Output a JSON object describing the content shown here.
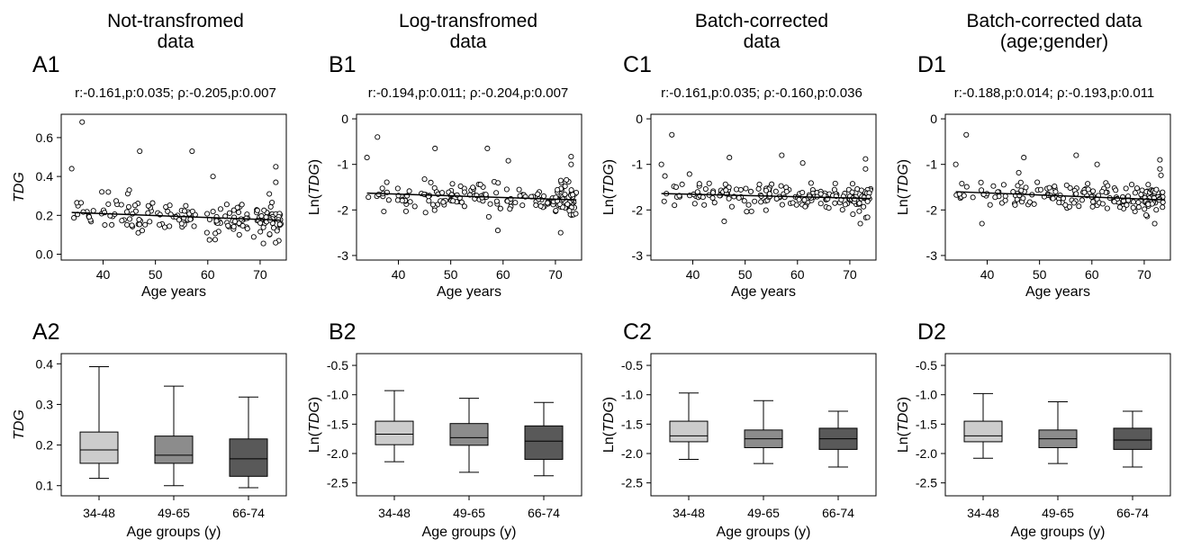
{
  "figure": {
    "columns": [
      {
        "title": [
          "Not-transfromed",
          "data"
        ],
        "scatter_label": "A1",
        "box_label": "A2",
        "corr": "r:-0.161,p:0.035; ρ:-0.205,p:0.007"
      },
      {
        "title": [
          "Log-transfromed",
          "data"
        ],
        "scatter_label": "B1",
        "box_label": "B2",
        "corr": "r:-0.194,p:0.011; ρ:-0.204,p:0.007"
      },
      {
        "title": [
          "Batch-corrected",
          "data"
        ],
        "scatter_label": "C1",
        "box_label": "C2",
        "corr": "r:-0.161,p:0.035; ρ:-0.160,p:0.036"
      },
      {
        "title": [
          "Batch-corrected data",
          "(age;gender)"
        ],
        "scatter_label": "D1",
        "box_label": "D2",
        "corr": "r:-0.188,p:0.014; ρ:-0.193,p:0.011"
      }
    ]
  },
  "chart_data": [
    {
      "id": "A1",
      "type": "scatter",
      "xlabel": "Age years",
      "ylabel": "TDG",
      "xlim": [
        32,
        75
      ],
      "ylim": [
        -0.03,
        0.72
      ],
      "xticks": [
        40,
        50,
        60,
        70
      ],
      "yticks": [
        0.0,
        0.2,
        0.4,
        0.6
      ],
      "ytick_labels": [
        "0.0",
        "0.2",
        "0.4",
        "0.6"
      ],
      "trend": {
        "x": [
          34,
          74
        ],
        "y": [
          0.215,
          0.175
        ]
      },
      "outliers": [
        [
          36,
          0.68
        ],
        [
          34,
          0.44
        ],
        [
          47,
          0.53
        ],
        [
          57,
          0.53
        ],
        [
          61,
          0.4
        ],
        [
          73,
          0.45
        ],
        [
          73,
          0.37
        ],
        [
          41,
          0.32
        ],
        [
          45,
          0.33
        ]
      ],
      "cloud": {
        "center": 0.19,
        "spread": 0.07,
        "n": 150
      }
    },
    {
      "id": "B1",
      "type": "scatter",
      "xlabel": "Age years",
      "ylabel": "Ln(TDG)",
      "xlim": [
        32,
        75
      ],
      "ylim": [
        -3.1,
        0.1
      ],
      "xticks": [
        40,
        50,
        60,
        70
      ],
      "yticks": [
        0,
        -1,
        -2,
        -3
      ],
      "ytick_labels": [
        "0",
        "-1",
        "-2",
        "-3"
      ],
      "trend": {
        "x": [
          34,
          74
        ],
        "y": [
          -1.63,
          -1.78
        ]
      },
      "outliers": [
        [
          36,
          -0.4
        ],
        [
          34,
          -0.85
        ],
        [
          47,
          -0.65
        ],
        [
          57,
          -0.65
        ],
        [
          61,
          -0.92
        ],
        [
          73,
          -0.83
        ],
        [
          73,
          -1.0
        ],
        [
          59,
          -2.45
        ],
        [
          71,
          -2.5
        ]
      ],
      "cloud": {
        "center": -1.7,
        "spread": 0.3,
        "n": 150
      }
    },
    {
      "id": "C1",
      "type": "scatter",
      "xlabel": "Age years",
      "ylabel": "Ln(TDG)",
      "xlim": [
        32,
        75
      ],
      "ylim": [
        -3.1,
        0.1
      ],
      "xticks": [
        40,
        50,
        60,
        70
      ],
      "yticks": [
        0,
        -1,
        -2,
        -3
      ],
      "ytick_labels": [
        "0",
        "-1",
        "-2",
        "-3"
      ],
      "trend": {
        "x": [
          34,
          74
        ],
        "y": [
          -1.64,
          -1.75
        ]
      },
      "outliers": [
        [
          36,
          -0.35
        ],
        [
          47,
          -0.85
        ],
        [
          57,
          -0.8
        ],
        [
          61,
          -0.97
        ],
        [
          73,
          -0.88
        ],
        [
          34,
          -1.0
        ],
        [
          73,
          -1.1
        ],
        [
          46,
          -2.25
        ],
        [
          72,
          -2.3
        ]
      ],
      "cloud": {
        "center": -1.72,
        "spread": 0.27,
        "n": 150
      }
    },
    {
      "id": "D1",
      "type": "scatter",
      "xlabel": "Age years",
      "ylabel": "Ln(TDG)",
      "xlim": [
        32,
        75
      ],
      "ylim": [
        -3.1,
        0.1
      ],
      "xticks": [
        40,
        50,
        60,
        70
      ],
      "yticks": [
        0,
        -1,
        -2,
        -3
      ],
      "ytick_labels": [
        "0",
        "-1",
        "-2",
        "-3"
      ],
      "trend": {
        "x": [
          34,
          74
        ],
        "y": [
          -1.6,
          -1.78
        ]
      },
      "outliers": [
        [
          36,
          -0.35
        ],
        [
          47,
          -0.85
        ],
        [
          57,
          -0.8
        ],
        [
          61,
          -1.0
        ],
        [
          73,
          -0.9
        ],
        [
          34,
          -1.0
        ],
        [
          73,
          -1.1
        ],
        [
          39,
          -2.3
        ],
        [
          72,
          -2.3
        ]
      ],
      "cloud": {
        "center": -1.72,
        "spread": 0.27,
        "n": 150
      }
    },
    {
      "id": "A2",
      "type": "box",
      "xlabel": "Age groups (y)",
      "ylabel": "TDG",
      "ylim": [
        0.075,
        0.425
      ],
      "yticks": [
        0.1,
        0.2,
        0.3,
        0.4
      ],
      "ytick_labels": [
        "0.1",
        "0.2",
        "0.3",
        "0.4"
      ],
      "categories": [
        "34-48",
        "49-65",
        "66-74"
      ],
      "boxes": [
        {
          "min": 0.118,
          "q1": 0.155,
          "median": 0.188,
          "q3": 0.232,
          "max": 0.393,
          "color": "#cccccc"
        },
        {
          "min": 0.1,
          "q1": 0.155,
          "median": 0.175,
          "q3": 0.222,
          "max": 0.345,
          "color": "#8c8c8c"
        },
        {
          "min": 0.095,
          "q1": 0.123,
          "median": 0.166,
          "q3": 0.215,
          "max": 0.318,
          "color": "#595959"
        }
      ]
    },
    {
      "id": "B2",
      "type": "box",
      "xlabel": "Age groups (y)",
      "ylabel": "Ln(TDG)",
      "ylim": [
        -2.72,
        -0.3
      ],
      "yticks": [
        -0.5,
        -1.0,
        -1.5,
        -2.0,
        -2.5
      ],
      "ytick_labels": [
        "-0.5",
        "-1.0",
        "-1.5",
        "-2.0",
        "-2.5"
      ],
      "categories": [
        "34-48",
        "49-65",
        "66-74"
      ],
      "boxes": [
        {
          "min": -2.14,
          "q1": -1.85,
          "median": -1.67,
          "q3": -1.45,
          "max": -0.93,
          "color": "#cccccc"
        },
        {
          "min": -2.32,
          "q1": -1.86,
          "median": -1.73,
          "q3": -1.49,
          "max": -1.06,
          "color": "#8c8c8c"
        },
        {
          "min": -2.38,
          "q1": -2.1,
          "median": -1.79,
          "q3": -1.53,
          "max": -1.13,
          "color": "#595959"
        }
      ]
    },
    {
      "id": "C2",
      "type": "box",
      "xlabel": "Age groups (y)",
      "ylabel": "Ln(TDG)",
      "ylim": [
        -2.72,
        -0.3
      ],
      "yticks": [
        -0.5,
        -1.0,
        -1.5,
        -2.0,
        -2.5
      ],
      "ytick_labels": [
        "-0.5",
        "-1.0",
        "-1.5",
        "-2.0",
        "-2.5"
      ],
      "categories": [
        "34-48",
        "49-65",
        "66-74"
      ],
      "boxes": [
        {
          "min": -2.1,
          "q1": -1.8,
          "median": -1.7,
          "q3": -1.45,
          "max": -0.97,
          "color": "#cccccc"
        },
        {
          "min": -2.17,
          "q1": -1.9,
          "median": -1.75,
          "q3": -1.6,
          "max": -1.1,
          "color": "#8c8c8c"
        },
        {
          "min": -2.23,
          "q1": -1.93,
          "median": -1.75,
          "q3": -1.57,
          "max": -1.28,
          "color": "#595959"
        }
      ]
    },
    {
      "id": "D2",
      "type": "box",
      "xlabel": "Age groups (y)",
      "ylabel": "Ln(TDG)",
      "ylim": [
        -2.72,
        -0.3
      ],
      "yticks": [
        -0.5,
        -1.0,
        -1.5,
        -2.0,
        -2.5
      ],
      "ytick_labels": [
        "-0.5",
        "-1.0",
        "-1.5",
        "-2.0",
        "-2.5"
      ],
      "categories": [
        "34-48",
        "49-65",
        "66-74"
      ],
      "boxes": [
        {
          "min": -2.08,
          "q1": -1.8,
          "median": -1.7,
          "q3": -1.45,
          "max": -0.98,
          "color": "#cccccc"
        },
        {
          "min": -2.17,
          "q1": -1.9,
          "median": -1.75,
          "q3": -1.6,
          "max": -1.12,
          "color": "#8c8c8c"
        },
        {
          "min": -2.23,
          "q1": -1.93,
          "median": -1.77,
          "q3": -1.57,
          "max": -1.28,
          "color": "#595959"
        }
      ]
    }
  ]
}
